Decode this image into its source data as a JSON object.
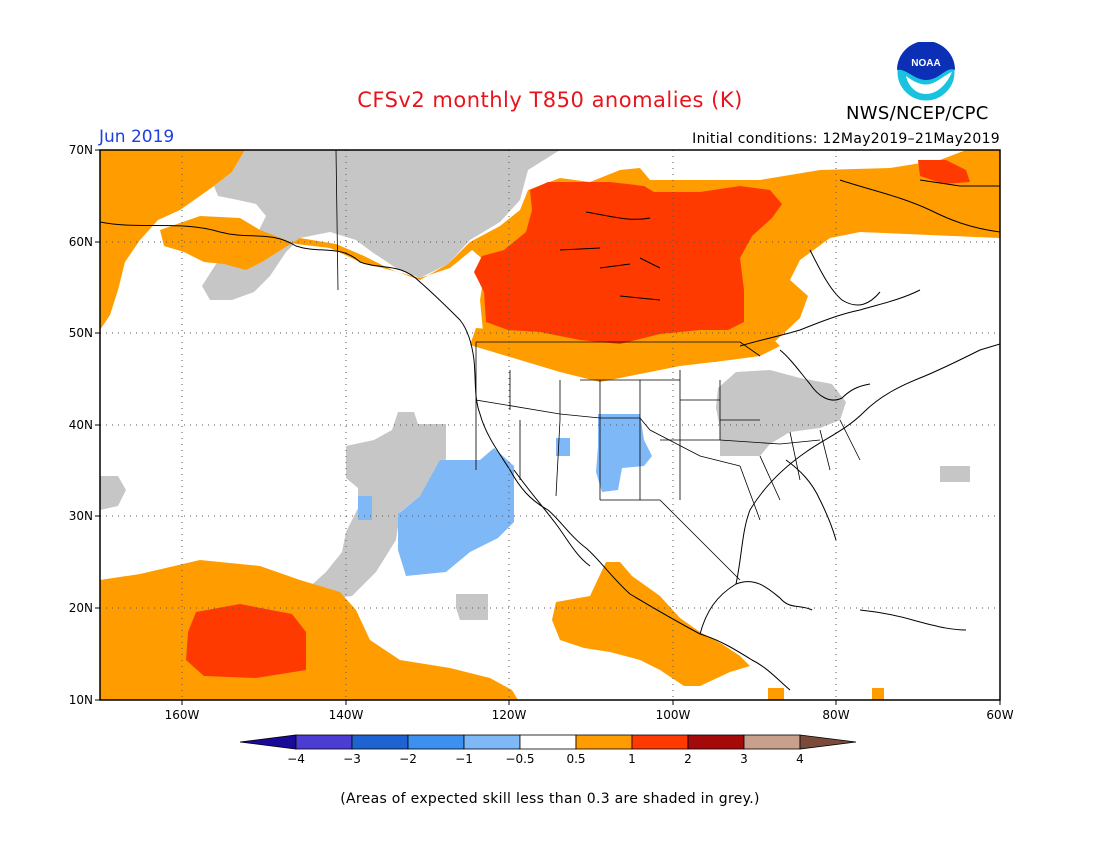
{
  "title": "CFSv2 monthly T850 anomalies (K)",
  "month": "Jun 2019",
  "initial_conditions": "Initial conditions: 12May2019–21May2019",
  "agency": "NWS/NCEP/CPC",
  "logo_text": "NOAA",
  "footnote": "(Areas of expected skill less than 0.3 are shaded in grey.)",
  "lat_labels": [
    "70N",
    "60N",
    "50N",
    "40N",
    "30N",
    "20N",
    "10N"
  ],
  "lon_labels": [
    "160W",
    "140W",
    "120W",
    "100W",
    "80W",
    "60W"
  ],
  "colorbar": {
    "labels": [
      "−4",
      "−3",
      "−2",
      "−1",
      "−0.5",
      "0.5",
      "1",
      "2",
      "3",
      "4"
    ],
    "colors": [
      "#1a0a9a",
      "#4b3cd4",
      "#1f63d3",
      "#3d8ff0",
      "#7fb8f6",
      "#ffffff",
      "#ff9d00",
      "#ff3a00",
      "#a50a0a",
      "#c9a08c",
      "#7a4a3a"
    ]
  },
  "colors": {
    "orange": "#ff9d00",
    "red": "#ff3a00",
    "grey": "#c6c6c6",
    "blue": "#7fb8f6",
    "title_red": "#e8141c",
    "month_blue": "#1f3fe0",
    "noaa_cyan": "#19c3e0",
    "noaa_blue": "#0b2fb5"
  },
  "map_fields": [
    {
      "name": "shade-orange-nw-pacific",
      "color": "orange"
    },
    {
      "name": "shade-grey-alaska",
      "color": "grey"
    },
    {
      "name": "shade-orange-canada-west",
      "color": "orange"
    },
    {
      "name": "shade-red-canada",
      "color": "red"
    },
    {
      "name": "shade-orange-east-canada",
      "color": "orange"
    },
    {
      "name": "shade-grey-great-lakes",
      "color": "grey"
    },
    {
      "name": "shade-grey-pacific-offshore",
      "color": "grey"
    },
    {
      "name": "shade-blue-pacific-offshore",
      "color": "blue"
    },
    {
      "name": "shade-blue-southwest",
      "color": "blue"
    },
    {
      "name": "shade-orange-hawaii",
      "color": "orange"
    },
    {
      "name": "shade-red-hawaii",
      "color": "red"
    },
    {
      "name": "shade-orange-mexico",
      "color": "orange"
    }
  ]
}
